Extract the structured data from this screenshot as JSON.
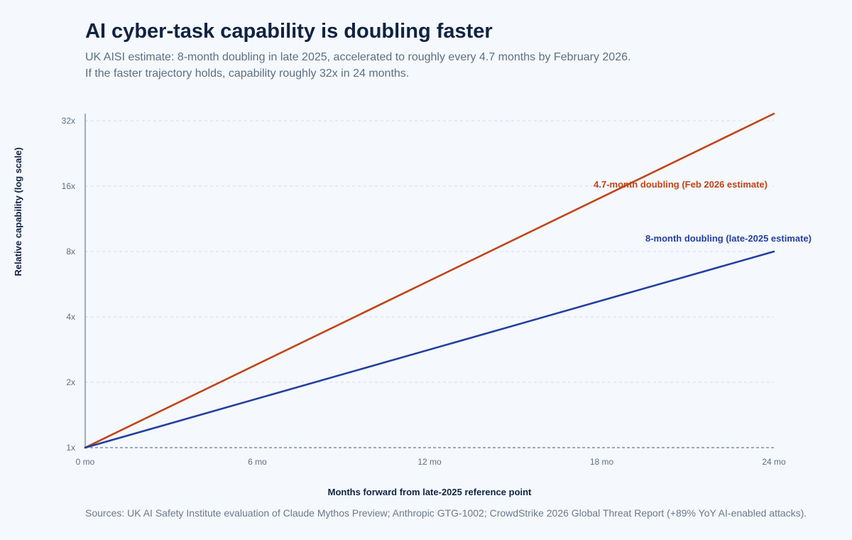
{
  "title": "AI cyber-task capability is doubling faster",
  "subtitle_lines": [
    "UK AISI estimate: 8-month doubling in late 2025, accelerated to roughly every 4.7 months by February 2026.",
    "If the faster trajectory holds, capability roughly 32x in 24 months."
  ],
  "sources": "Sources: UK AI Safety Institute evaluation of Claude Mythos Preview; Anthropic GTG-1002; CrowdStrike 2026 Global Threat Report (+89% YoY AI-enabled attacks).",
  "chart_data": {
    "type": "line",
    "xlabel": "Months forward from late-2025 reference point",
    "ylabel": "Relative capability (log scale)",
    "xlim": [
      0,
      24
    ],
    "ylim": [
      1,
      32
    ],
    "y_scale": "log2",
    "grid": "horizontal dashed",
    "x_ticks": [
      {
        "value": 0,
        "label": "0 mo"
      },
      {
        "value": 6,
        "label": "6 mo"
      },
      {
        "value": 12,
        "label": "12 mo"
      },
      {
        "value": 18,
        "label": "18 mo"
      },
      {
        "value": 24,
        "label": "24 mo"
      }
    ],
    "y_ticks": [
      {
        "value": 1,
        "label": "1x"
      },
      {
        "value": 2,
        "label": "2x"
      },
      {
        "value": 4,
        "label": "4x"
      },
      {
        "value": 8,
        "label": "8x"
      },
      {
        "value": 16,
        "label": "16x"
      },
      {
        "value": 32,
        "label": "32x"
      }
    ],
    "series": [
      {
        "name": "4.7-month doubling (Feb 2026 estimate)",
        "color": "#c0441a",
        "x": [
          0,
          24
        ],
        "y": [
          1,
          34.5
        ]
      },
      {
        "name": "8-month doubling (late-2025 estimate)",
        "color": "#2340a0",
        "x": [
          0,
          24
        ],
        "y": [
          1,
          8
        ]
      }
    ]
  }
}
